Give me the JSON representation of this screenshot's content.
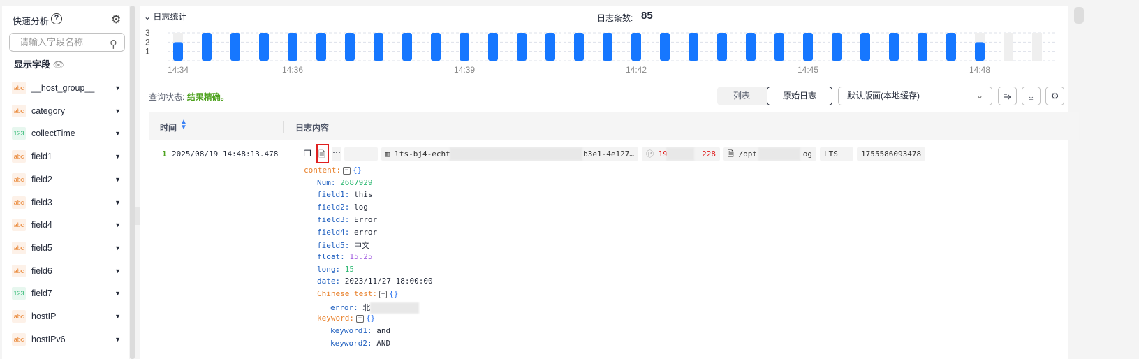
{
  "sidebar": {
    "title": "快速分析",
    "help_icon": "question-circle-icon",
    "settings_icon": "gear-icon",
    "search_placeholder": "请输入字段名称",
    "show_fields_label": "显示字段",
    "fields": [
      {
        "type": "abc",
        "name": "__host_group__"
      },
      {
        "type": "abc",
        "name": "category"
      },
      {
        "type": "123",
        "name": "collectTime"
      },
      {
        "type": "abc",
        "name": "field1"
      },
      {
        "type": "abc",
        "name": "field2"
      },
      {
        "type": "abc",
        "name": "field3"
      },
      {
        "type": "abc",
        "name": "field4"
      },
      {
        "type": "abc",
        "name": "field5"
      },
      {
        "type": "abc",
        "name": "field6"
      },
      {
        "type": "123",
        "name": "field7"
      },
      {
        "type": "abc",
        "name": "hostIP"
      },
      {
        "type": "abc",
        "name": "hostIPv6"
      }
    ]
  },
  "stats": {
    "toggle_label": "日志统计",
    "count_label": "日志条数:",
    "count_value": "85"
  },
  "chart_data": {
    "type": "bar",
    "yticks": [
      "1",
      "2",
      "3"
    ],
    "ylim": [
      0,
      3
    ],
    "grid": true,
    "categories": [
      "14:34:00",
      "14:34:30",
      "14:35:00",
      "14:35:30",
      "14:36:00",
      "14:36:30",
      "14:37:00",
      "14:37:30",
      "14:38:00",
      "14:38:30",
      "14:39:00",
      "14:39:30",
      "14:40:00",
      "14:40:30",
      "14:41:00",
      "14:41:30",
      "14:42:00",
      "14:42:30",
      "14:43:00",
      "14:43:30",
      "14:44:00",
      "14:44:30",
      "14:45:00",
      "14:45:30",
      "14:46:00",
      "14:46:30",
      "14:47:00",
      "14:47:30",
      "14:48:00",
      "14:48:30",
      "14:49:00"
    ],
    "values": [
      2,
      3,
      3,
      3,
      3,
      3,
      3,
      3,
      3,
      3,
      3,
      3,
      3,
      3,
      3,
      3,
      3,
      3,
      3,
      3,
      3,
      3,
      3,
      3,
      3,
      3,
      3,
      3,
      2,
      0,
      0
    ],
    "xtick_labels": [
      {
        "index": 0,
        "label": "14:34"
      },
      {
        "index": 4,
        "label": "14:36"
      },
      {
        "index": 10,
        "label": "14:39"
      },
      {
        "index": 16,
        "label": "14:42"
      },
      {
        "index": 22,
        "label": "14:45"
      },
      {
        "index": 28,
        "label": "14:48"
      }
    ],
    "bar_color": "#1677ff",
    "background_color": "#efefef"
  },
  "toolbar": {
    "query_status_label": "查询状态:",
    "query_status_value": "结果精确。",
    "tab_list": "列表",
    "tab_raw": "原始日志",
    "layout_select": "默认版面(本地缓存)",
    "icons": [
      "wrap-icon",
      "download-icon",
      "gear-icon"
    ]
  },
  "table": {
    "col_time": "时间",
    "col_content": "日志内容",
    "row": {
      "index": "1",
      "time": "2025/08/19 14:48:13.478",
      "tags": [
        "lts-bj4-echt",
        "b3e1-4e127…",
        "19",
        "228",
        "/opt",
        "og",
        "LTS",
        "1755586093478"
      ],
      "lines": [
        {
          "indent": 0,
          "key": "content",
          "obj": true
        },
        {
          "indent": 1,
          "key": "Num",
          "value": "2687929",
          "vt": "num"
        },
        {
          "indent": 1,
          "key": "field1",
          "value": "this"
        },
        {
          "indent": 1,
          "key": "field2",
          "value": "log"
        },
        {
          "indent": 1,
          "key": "field3",
          "value": "Error"
        },
        {
          "indent": 1,
          "key": "field4",
          "value": "error"
        },
        {
          "indent": 1,
          "key": "field5",
          "value": "中文"
        },
        {
          "indent": 1,
          "key": "float",
          "value": "15.25",
          "vt": "float"
        },
        {
          "indent": 1,
          "key": "long",
          "value": "15",
          "vt": "num"
        },
        {
          "indent": 1,
          "key": "date",
          "value": "2023/11/27 18:00:00"
        },
        {
          "indent": 1,
          "key": "Chinese_test",
          "obj": true
        },
        {
          "indent": 2,
          "key": "error",
          "value": "北"
        },
        {
          "indent": 1,
          "key": "keyword",
          "obj": true
        },
        {
          "indent": 2,
          "key": "keyword1",
          "value": "and"
        },
        {
          "indent": 2,
          "key": "keyword2",
          "value": "AND"
        }
      ]
    }
  }
}
